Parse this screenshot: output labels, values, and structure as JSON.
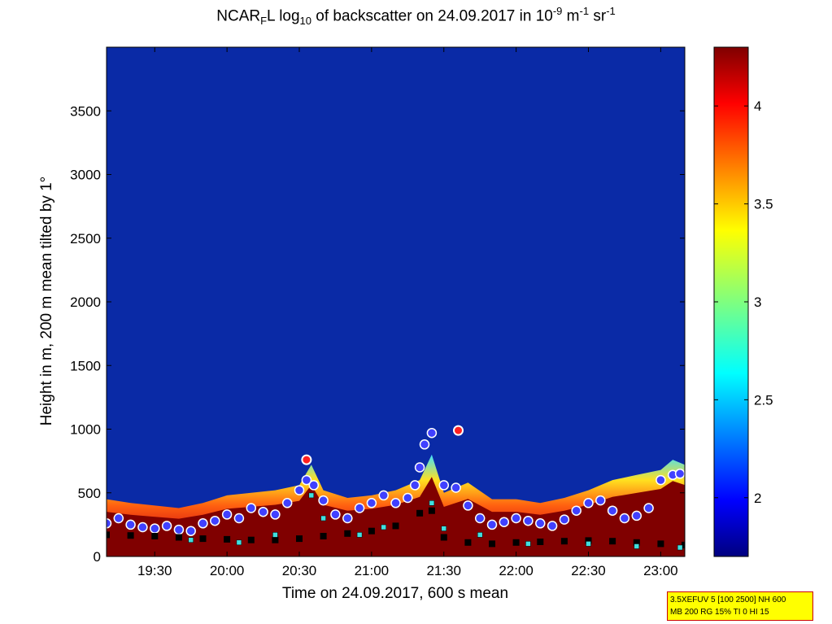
{
  "title": {
    "prefix": "NCAR",
    "prefix_sub": "F",
    "part2": "L log",
    "part2_sub": "10",
    "part3": " of backscatter on 24.09.2017 in 10",
    "sup1": "-9",
    "part4": " m",
    "sup2": "-1",
    "part5": " sr",
    "sup3": "-1"
  },
  "info_box": {
    "line1": "3.5XEFUV 5 [100 2500] NH 600",
    "line2": "MB 200 RG 15% TI 0 HI 15"
  },
  "colors": {
    "background_low": "#0a2aa6",
    "high": "#800000",
    "marker_circle_fill": "#4040ff",
    "marker_circle_edge": "#ff2020",
    "marker_square_black": "#000000",
    "marker_square_cyan": "#40e0e0"
  },
  "chart_data": {
    "type": "heatmap",
    "title": "NCAR_F L log10 of backscatter on 24.09.2017 in 10^-9 m^-1 sr^-1",
    "xlabel": "Time on 24.09.2017, 600 s mean",
    "ylabel": "Height in m, 200 m mean tilted by 1°",
    "xlim": [
      "19:10",
      "23:10"
    ],
    "ylim": [
      0,
      4000
    ],
    "x_ticks": [
      "19:30",
      "20:00",
      "20:30",
      "21:00",
      "21:30",
      "22:00",
      "22:30",
      "23:00"
    ],
    "y_ticks": [
      "0",
      "500",
      "1000",
      "1500",
      "2000",
      "2500",
      "3000",
      "3500"
    ],
    "colorbar": {
      "range": [
        1.7,
        4.3
      ],
      "ticks": [
        "2",
        "2.5",
        "3",
        "3.5",
        "4"
      ],
      "colormap": "jet"
    },
    "grid": false,
    "aerosol_layer_top": {
      "x": [
        "19:10",
        "19:20",
        "19:30",
        "19:40",
        "19:50",
        "20:00",
        "20:10",
        "20:20",
        "20:30",
        "20:35",
        "20:40",
        "20:50",
        "21:00",
        "21:10",
        "21:20",
        "21:25",
        "21:30",
        "21:40",
        "21:50",
        "22:00",
        "22:10",
        "22:20",
        "22:30",
        "22:40",
        "22:50",
        "23:00",
        "23:05",
        "23:10"
      ],
      "y": [
        450,
        420,
        400,
        380,
        420,
        480,
        500,
        520,
        560,
        720,
        520,
        460,
        480,
        520,
        600,
        800,
        500,
        580,
        450,
        450,
        420,
        460,
        520,
        600,
        640,
        680,
        760,
        720
      ]
    },
    "layer_height_circles": {
      "x": [
        "19:10",
        "19:15",
        "19:20",
        "19:25",
        "19:30",
        "19:35",
        "19:40",
        "19:45",
        "19:50",
        "19:55",
        "20:00",
        "20:05",
        "20:10",
        "20:15",
        "20:20",
        "20:25",
        "20:30",
        "20:33",
        "20:36",
        "20:40",
        "20:45",
        "20:50",
        "20:55",
        "21:00",
        "21:05",
        "21:10",
        "21:15",
        "21:18",
        "21:20",
        "21:22",
        "21:25",
        "21:30",
        "21:35",
        "21:40",
        "21:45",
        "21:50",
        "21:55",
        "22:00",
        "22:05",
        "22:10",
        "22:15",
        "22:20",
        "22:25",
        "22:30",
        "22:35",
        "22:40",
        "22:45",
        "22:50",
        "22:55",
        "23:00",
        "23:05",
        "23:08"
      ],
      "y": [
        260,
        300,
        250,
        230,
        220,
        240,
        210,
        200,
        260,
        280,
        330,
        300,
        380,
        350,
        330,
        420,
        520,
        600,
        560,
        440,
        330,
        300,
        380,
        420,
        480,
        420,
        460,
        560,
        700,
        880,
        970,
        560,
        540,
        400,
        300,
        250,
        270,
        300,
        280,
        260,
        240,
        290,
        360,
        420,
        440,
        360,
        300,
        320,
        380,
        600,
        640,
        650
      ]
    },
    "isolated_circles": {
      "x": [
        "20:33",
        "21:36"
      ],
      "y": [
        760,
        990
      ]
    },
    "mixing_layer_squares_black": {
      "x": [
        "19:10",
        "19:20",
        "19:30",
        "19:40",
        "19:50",
        "20:00",
        "20:10",
        "20:20",
        "20:30",
        "20:40",
        "20:50",
        "21:00",
        "21:10",
        "21:20",
        "21:25",
        "21:30",
        "21:40",
        "21:50",
        "22:00",
        "22:10",
        "22:20",
        "22:30",
        "22:40",
        "22:50",
        "23:00",
        "23:10"
      ],
      "y": [
        170,
        165,
        160,
        150,
        140,
        135,
        130,
        130,
        140,
        160,
        180,
        200,
        240,
        340,
        360,
        150,
        110,
        100,
        110,
        115,
        120,
        125,
        120,
        110,
        100,
        90
      ]
    },
    "mixing_layer_squares_cyan": {
      "x": [
        "19:45",
        "20:05",
        "20:20",
        "20:35",
        "20:40",
        "20:55",
        "21:05",
        "21:25",
        "21:30",
        "21:45",
        "22:05",
        "22:30",
        "22:50",
        "23:08"
      ],
      "y": [
        130,
        110,
        170,
        480,
        300,
        170,
        230,
        420,
        220,
        170,
        100,
        100,
        80,
        70
      ]
    }
  }
}
